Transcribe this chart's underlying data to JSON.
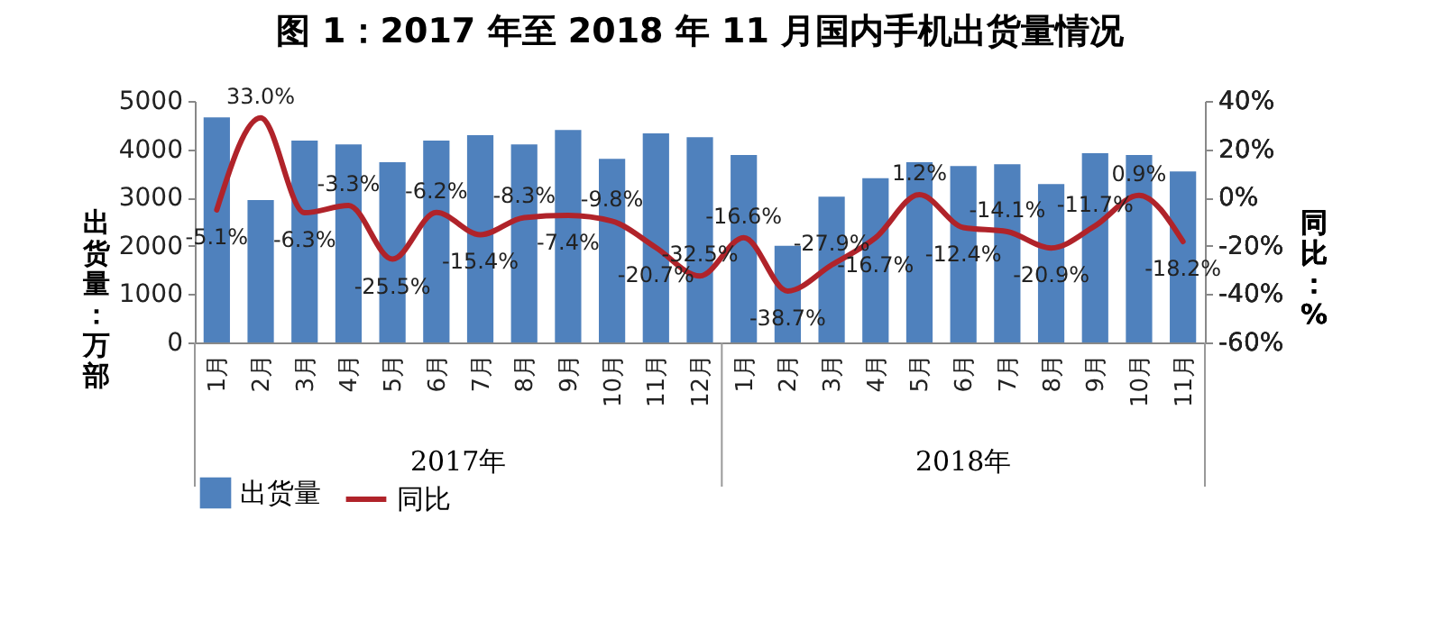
{
  "chart_data": {
    "type": "bar",
    "title": "图 1：2017 年至 2018 年 11 月国内手机出货量情况",
    "categories": [
      "1月",
      "2月",
      "3月",
      "4月",
      "5月",
      "6月",
      "7月",
      "8月",
      "9月",
      "10月",
      "11月",
      "12月",
      "1月",
      "2月",
      "3月",
      "4月",
      "5月",
      "6月",
      "7月",
      "8月",
      "9月",
      "10月",
      "11月"
    ],
    "annotations": [
      "2017年",
      "2018年"
    ],
    "ylabel": "出货量：万部",
    "y2label": "同比：%",
    "series": [
      {
        "name": "出货量",
        "color": "#4f81bd",
        "values": [
          4660,
          2950,
          4180,
          4100,
          3730,
          4180,
          4290,
          4100,
          4400,
          3800,
          4330,
          4250,
          3880,
          2000,
          3020,
          3400,
          3730,
          3650,
          3690,
          3280,
          3920,
          3880,
          3540
        ]
      },
      {
        "name": "同比",
        "type": "line",
        "axis": "y2",
        "color": "#b0232a",
        "values": [
          -5.1,
          33.0,
          -6.3,
          -3.3,
          -25.5,
          -6.2,
          -15.4,
          -8.3,
          -7.4,
          -9.8,
          -20.7,
          -32.5,
          -16.6,
          -38.7,
          -27.9,
          -16.7,
          1.2,
          -12.4,
          -14.1,
          -20.9,
          -11.7,
          0.9,
          -18.2
        ],
        "value_labels": [
          "-5.1%",
          "33.0%",
          "-6.3%",
          "-3.3%",
          "-25.5%",
          "-6.2%",
          "-15.4%",
          "-8.3%",
          "-7.4%",
          "-9.8%",
          "-20.7%",
          "-32.5%",
          "-16.6%",
          "-38.7%",
          "-27.9%",
          "-16.7%",
          "1.2%",
          "-12.4%",
          "-14.1%",
          "-20.9%",
          "-11.7%",
          "0.9%",
          "-18.2%"
        ]
      }
    ],
    "ylim": [
      0,
      5000
    ],
    "yticks": [
      0,
      1000,
      2000,
      3000,
      4000,
      5000
    ],
    "y2lim": [
      -60,
      40
    ],
    "y2ticks": [
      {
        "value": -60,
        "label": "-60%"
      },
      {
        "value": -40,
        "label": "-40%"
      },
      {
        "value": -20,
        "label": "-20%"
      },
      {
        "value": 0,
        "label": "0%"
      },
      {
        "value": 20,
        "label": "20%"
      },
      {
        "value": 40,
        "label": "40%"
      }
    ],
    "grid": false,
    "legend": "bottom"
  }
}
